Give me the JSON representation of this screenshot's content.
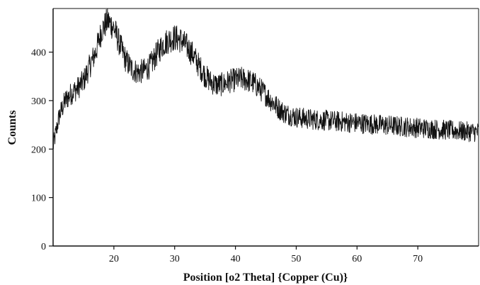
{
  "chart_data": {
    "type": "line",
    "title": "",
    "xlabel": "Position [o2 Theta] {Copper (Cu)}",
    "ylabel": "Counts",
    "xlim": [
      10,
      80
    ],
    "ylim": [
      0,
      490
    ],
    "x_ticks": [
      20,
      30,
      40,
      50,
      60,
      70
    ],
    "y_ticks": [
      0,
      100,
      200,
      300,
      400
    ],
    "x_tick_labels": [
      "20",
      "30",
      "40",
      "50",
      "60",
      "70"
    ],
    "y_tick_labels": [
      "0",
      "100",
      "200",
      "300",
      "400"
    ],
    "grid": false,
    "legend": "none",
    "series": [
      {
        "color": "#111111",
        "x": [
          10,
          11,
          12,
          13,
          14,
          15,
          16,
          17,
          18,
          19,
          20,
          21,
          22,
          23,
          24,
          25,
          26,
          27,
          28,
          29,
          30,
          31,
          32,
          33,
          34,
          35,
          36,
          37,
          38,
          39,
          40,
          41,
          42,
          43,
          44,
          45,
          46,
          47,
          48,
          49,
          50,
          52,
          54,
          56,
          58,
          60,
          62,
          64,
          66,
          68,
          70,
          72,
          74,
          76,
          78,
          80
        ],
        "values": [
          205,
          268,
          300,
          315,
          325,
          340,
          370,
          400,
          445,
          465,
          450,
          415,
          382,
          365,
          358,
          362,
          372,
          395,
          415,
          425,
          430,
          425,
          412,
          395,
          372,
          352,
          338,
          332,
          334,
          340,
          343,
          345,
          342,
          336,
          325,
          312,
          298,
          285,
          275,
          270,
          266,
          262,
          260,
          258,
          256,
          254,
          252,
          250,
          248,
          246,
          244,
          242,
          240,
          238,
          236,
          235
        ]
      }
    ]
  }
}
